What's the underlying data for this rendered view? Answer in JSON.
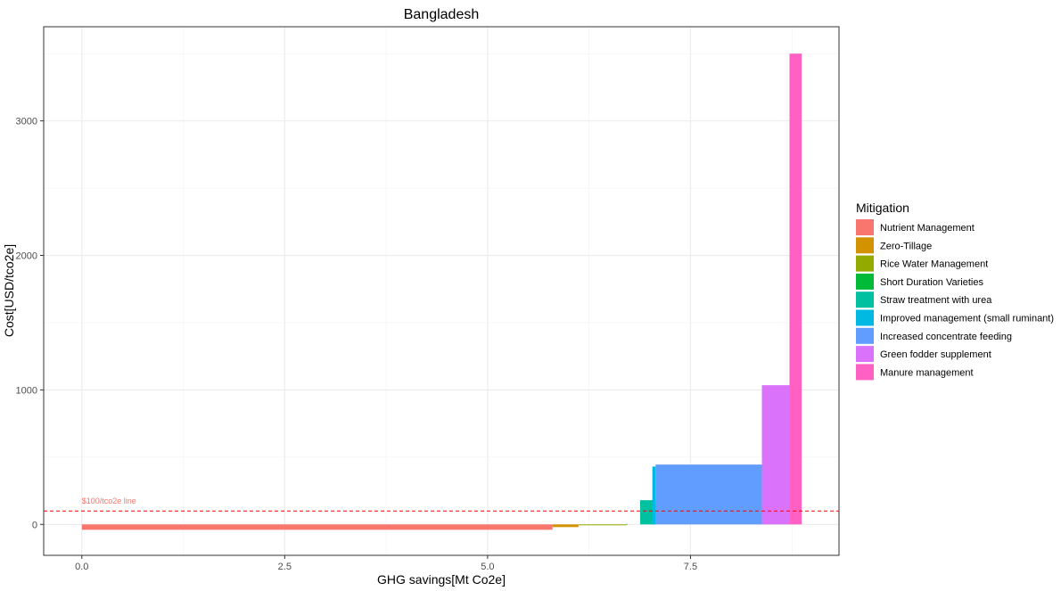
{
  "chart_data": {
    "type": "bar",
    "title": "Bangladesh",
    "xlabel": "GHG savings[Mt Co2e]",
    "ylabel": "Cost[USD/tco2e]",
    "xlim": [
      -0.47,
      9.33
    ],
    "ylim": [
      -230,
      3700
    ],
    "x_ticks": [
      0.0,
      2.5,
      5.0,
      7.5
    ],
    "x_tick_labels": [
      "0.0",
      "2.5",
      "5.0",
      "7.5"
    ],
    "y_ticks": [
      0,
      1000,
      2000,
      3000
    ],
    "y_tick_labels": [
      "0",
      "1000",
      "2000",
      "3000"
    ],
    "grid": true,
    "legend_title": "Mitigation",
    "legend_position": "right",
    "series": [
      {
        "name": "Nutrient Management",
        "x_start": 0.0,
        "x_end": 5.8,
        "value": -40,
        "color": "#F8766D"
      },
      {
        "name": "Zero-Tillage",
        "x_start": 5.8,
        "x_end": 6.12,
        "value": -20,
        "color": "#D39200"
      },
      {
        "name": "Rice Water Management",
        "x_start": 6.12,
        "x_end": 6.71,
        "value": -5,
        "color": "#93AA00"
      },
      {
        "name": "Short Duration Varieties",
        "x_start": 6.71,
        "x_end": 6.72,
        "value": 5,
        "color": "#00BA38"
      },
      {
        "name": "Straw treatment with urea",
        "x_start": 6.88,
        "x_end": 7.07,
        "value": 180,
        "color": "#00C19F"
      },
      {
        "name": "Improved management (small ruminant)",
        "x_start": 7.03,
        "x_end": 7.07,
        "value": 430,
        "color": "#00B9E3"
      },
      {
        "name": "Increased concentrate feeding",
        "x_start": 7.07,
        "x_end": 8.38,
        "value": 445,
        "color": "#619CFF"
      },
      {
        "name": "Green fodder supplement",
        "x_start": 8.38,
        "x_end": 8.72,
        "value": 1035,
        "color": "#DB72FB"
      },
      {
        "name": "Manure management",
        "x_start": 8.72,
        "x_end": 8.87,
        "value": 3500,
        "color": "#FF61C3"
      }
    ],
    "reference_line": {
      "value": 100,
      "label": "$100/tco2e line",
      "color": "#FF0000",
      "label_color": "#F8766D"
    }
  }
}
